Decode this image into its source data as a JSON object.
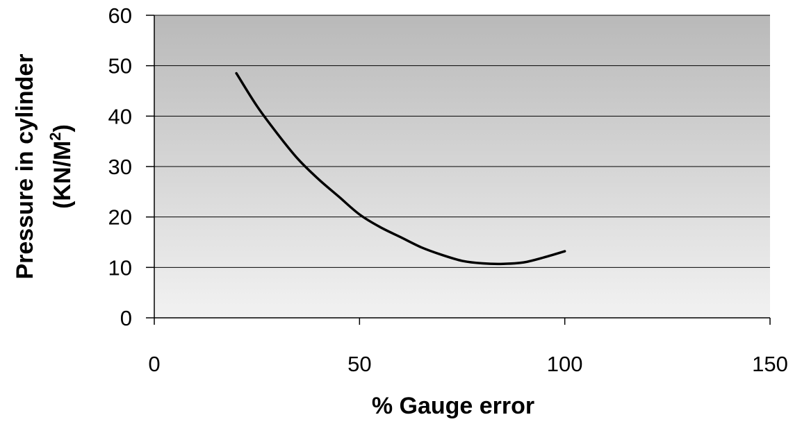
{
  "chart_data": {
    "type": "line",
    "title": "",
    "xlabel": "% Gauge error",
    "ylabel": {
      "line1": "Pressure in cylinder",
      "line2_main": "(KN/M",
      "line2_sup": "2",
      "line2_end": ")"
    },
    "xlim": [
      0,
      150
    ],
    "ylim": [
      0,
      60
    ],
    "xticks": [
      0,
      50,
      100,
      150
    ],
    "yticks": [
      0,
      10,
      20,
      30,
      40,
      50,
      60
    ],
    "grid": "horizontal",
    "legend": "none",
    "plot_background": "gradient-gray",
    "series": [
      {
        "color": "#000000",
        "x": [
          20,
          25,
          30,
          35,
          40,
          45,
          50,
          55,
          60,
          65,
          70,
          75,
          80,
          85,
          90,
          95,
          100
        ],
        "y": [
          48.5,
          42.0,
          36.5,
          31.5,
          27.5,
          24.0,
          20.5,
          18.0,
          16.0,
          14.0,
          12.5,
          11.3,
          10.8,
          10.7,
          11.0,
          12.0,
          13.2
        ]
      }
    ]
  }
}
